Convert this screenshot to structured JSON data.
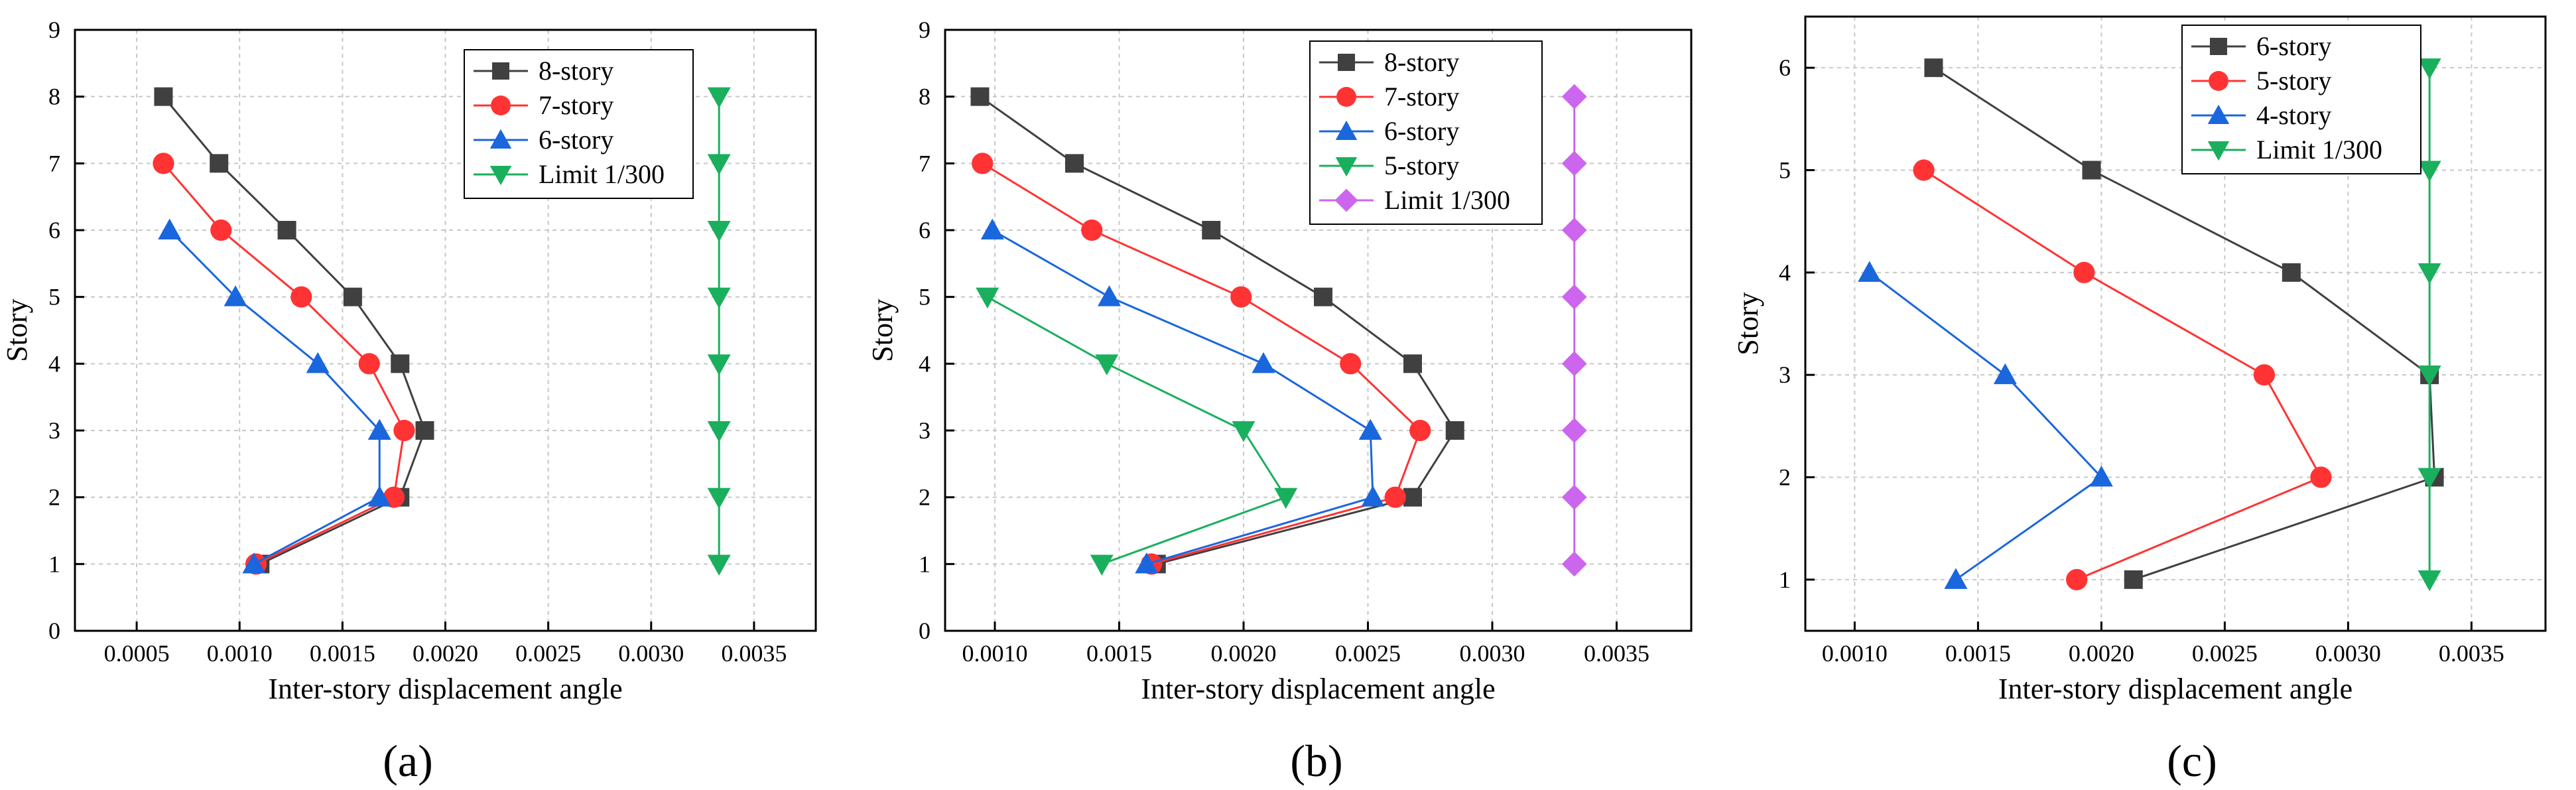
{
  "chart_data": [
    {
      "type": "line",
      "panel_label": "(a)",
      "xlabel": "Inter-story displacement angle",
      "ylabel": "Story",
      "xlim": [
        0.0002,
        0.0038
      ],
      "ylim": [
        0,
        9
      ],
      "xticks": [
        "0.0005",
        "0.0010",
        "0.0015",
        "0.0020",
        "0.0025",
        "0.0030",
        "0.0035"
      ],
      "yticks": [
        "0",
        "1",
        "2",
        "3",
        "4",
        "5",
        "6",
        "7",
        "8",
        "9"
      ],
      "grid": true,
      "legend_position": "top-right",
      "series": [
        {
          "name": "8-story",
          "color": "#404040",
          "marker": "square",
          "x": [
            0.0011,
            0.00178,
            0.0019,
            0.00178,
            0.00155,
            0.00123,
            0.0009,
            0.00063
          ],
          "y": [
            1,
            2,
            3,
            4,
            5,
            6,
            7,
            8
          ]
        },
        {
          "name": "7-story",
          "color": "#ff3333",
          "marker": "circle",
          "x": [
            0.00108,
            0.00175,
            0.0018,
            0.00163,
            0.0013,
            0.00091,
            0.00063
          ],
          "y": [
            1,
            2,
            3,
            4,
            5,
            6,
            7
          ]
        },
        {
          "name": "6-story",
          "color": "#1a66dd",
          "marker": "triangle-up",
          "x": [
            0.00107,
            0.00168,
            0.00168,
            0.00138,
            0.00098,
            0.00066
          ],
          "y": [
            1,
            2,
            3,
            4,
            5,
            6
          ]
        },
        {
          "name": "Limit 1/300",
          "color": "#1aaf5d",
          "marker": "triangle-down",
          "x": [
            0.00333,
            0.00333,
            0.00333,
            0.00333,
            0.00333,
            0.00333,
            0.00333,
            0.00333
          ],
          "y": [
            1,
            2,
            3,
            4,
            5,
            6,
            7,
            8
          ]
        }
      ]
    },
    {
      "type": "line",
      "panel_label": "(b)",
      "xlabel": "Inter-story displacement angle",
      "ylabel": "Story",
      "xlim": [
        0.0008,
        0.0038
      ],
      "ylim": [
        0,
        9
      ],
      "xticks": [
        "0.0010",
        "0.0015",
        "0.0020",
        "0.0025",
        "0.0030",
        "0.0035"
      ],
      "yticks": [
        "0",
        "1",
        "2",
        "3",
        "4",
        "5",
        "6",
        "7",
        "8",
        "9"
      ],
      "grid": true,
      "legend_position": "top-right",
      "series": [
        {
          "name": "8-story",
          "color": "#404040",
          "marker": "square",
          "x": [
            0.00165,
            0.00268,
            0.00285,
            0.00268,
            0.00232,
            0.00187,
            0.00132,
            0.00094
          ],
          "y": [
            1,
            2,
            3,
            4,
            5,
            6,
            7,
            8
          ]
        },
        {
          "name": "7-story",
          "color": "#ff3333",
          "marker": "circle",
          "x": [
            0.00163,
            0.00261,
            0.00271,
            0.00243,
            0.00199,
            0.00139,
            0.00095
          ],
          "y": [
            1,
            2,
            3,
            4,
            5,
            6,
            7
          ]
        },
        {
          "name": "6-story",
          "color": "#1a66dd",
          "marker": "triangle-up",
          "x": [
            0.00161,
            0.00252,
            0.00251,
            0.00208,
            0.00146,
            0.00099
          ],
          "y": [
            1,
            2,
            3,
            4,
            5,
            6
          ]
        },
        {
          "name": "5-story",
          "color": "#1aaf5d",
          "marker": "triangle-down",
          "x": [
            0.00143,
            0.00217,
            0.002,
            0.00145,
            0.00097
          ],
          "y": [
            1,
            2,
            3,
            4,
            5
          ]
        },
        {
          "name": "Limit 1/300",
          "color": "#cc66ee",
          "marker": "diamond",
          "x": [
            0.00333,
            0.00333,
            0.00333,
            0.00333,
            0.00333,
            0.00333,
            0.00333,
            0.00333
          ],
          "y": [
            1,
            2,
            3,
            4,
            5,
            6,
            7,
            8
          ]
        }
      ]
    },
    {
      "type": "line",
      "panel_label": "(c)",
      "xlabel": "Inter-story displacement angle",
      "ylabel": "Story",
      "xlim": [
        0.0008,
        0.0038
      ],
      "ylim": [
        0.5,
        6.5
      ],
      "xticks": [
        "0.0010",
        "0.0015",
        "0.0020",
        "0.0025",
        "0.0030",
        "0.0035"
      ],
      "yticks": [
        "1",
        "2",
        "3",
        "4",
        "5",
        "6"
      ],
      "grid": true,
      "legend_position": "top-right",
      "series": [
        {
          "name": "6-story",
          "color": "#404040",
          "marker": "square",
          "x": [
            0.00213,
            0.00335,
            0.00333,
            0.00277,
            0.00196,
            0.00132
          ],
          "y": [
            1,
            2,
            3,
            4,
            5,
            6
          ]
        },
        {
          "name": "5-story",
          "color": "#ff3333",
          "marker": "circle",
          "x": [
            0.0019,
            0.00289,
            0.00266,
            0.00193,
            0.00128
          ],
          "y": [
            1,
            2,
            3,
            4,
            5
          ]
        },
        {
          "name": "4-story",
          "color": "#1a66dd",
          "marker": "triangle-up",
          "x": [
            0.00141,
            0.002,
            0.00161,
            0.00106
          ],
          "y": [
            1,
            2,
            3,
            4
          ]
        },
        {
          "name": "Limit 1/300",
          "color": "#1aaf5d",
          "marker": "triangle-down",
          "x": [
            0.00333,
            0.00333,
            0.00333,
            0.00333,
            0.00333,
            0.00333
          ],
          "y": [
            1,
            2,
            3,
            4,
            5,
            6
          ]
        }
      ]
    }
  ]
}
